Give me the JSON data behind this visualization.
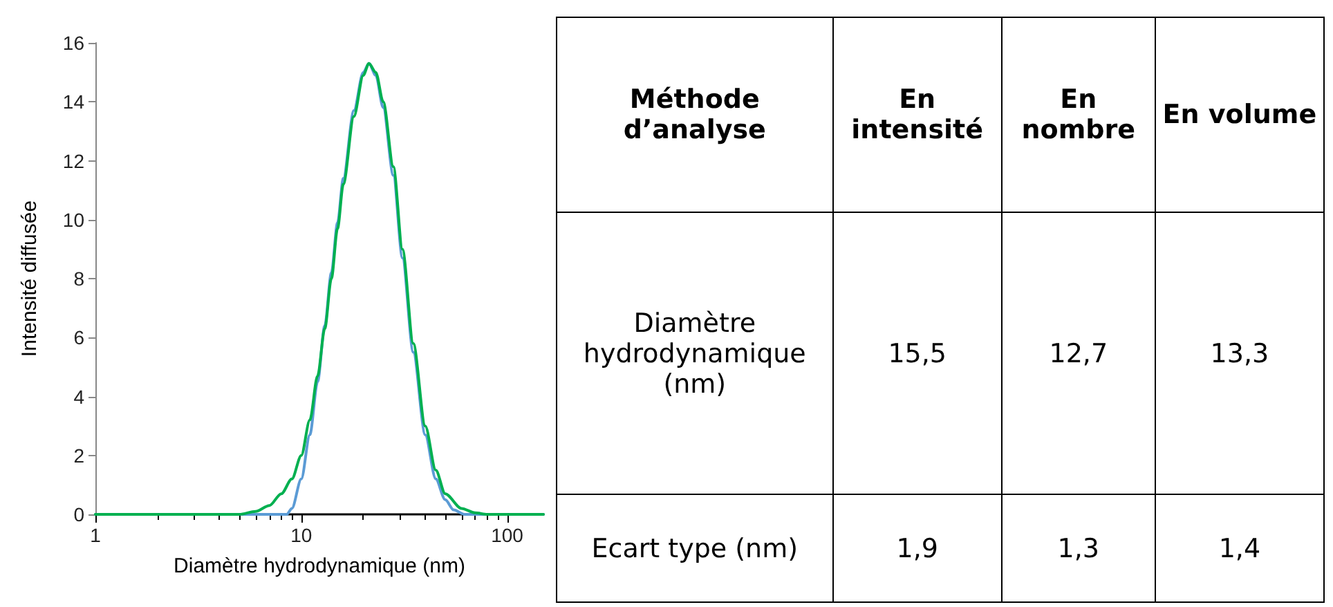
{
  "chart_data": [
    {
      "type": "line",
      "xlabel": "Diamètre hydrodynamique (nm)",
      "ylabel": "Intensité diffusée",
      "log": "x",
      "grid": false,
      "marker": "none",
      "line_style": "solid",
      "xlim": [
        1,
        150
      ],
      "xticks": [
        1,
        10,
        100
      ],
      "ylim": [
        0,
        16
      ],
      "yticks": [
        0,
        2,
        4,
        6,
        8,
        10,
        12,
        14,
        16
      ],
      "series": [
        {
          "color": "#5b9bd5",
          "x": [
            1,
            8.5,
            9,
            10,
            11,
            12,
            13,
            14,
            15,
            16,
            18,
            20,
            21.3,
            23,
            25,
            28,
            31,
            35,
            40,
            45,
            50,
            55,
            62,
            150
          ],
          "values": [
            0,
            0,
            0.2,
            1.2,
            2.7,
            4.5,
            6.4,
            8.2,
            9.9,
            11.4,
            13.7,
            15,
            15.3,
            14.9,
            13.8,
            11.5,
            8.7,
            5.5,
            2.7,
            1.2,
            0.5,
            0.15,
            0,
            0
          ]
        },
        {
          "color": "#00b050",
          "x": [
            1,
            3,
            5,
            6,
            7,
            8,
            9,
            10,
            11,
            12,
            13,
            14,
            15,
            16,
            18,
            20,
            21.3,
            23,
            25,
            28,
            31,
            35,
            40,
            45,
            50,
            60,
            70,
            80,
            150
          ],
          "values": [
            0,
            0,
            0,
            0.1,
            0.3,
            0.7,
            1.2,
            2,
            3.2,
            4.7,
            6.3,
            8,
            9.7,
            11.2,
            13.5,
            14.9,
            15.3,
            15,
            14,
            11.8,
            9,
            5.8,
            3,
            1.5,
            0.7,
            0.2,
            0.05,
            0,
            0
          ]
        }
      ]
    },
    {
      "type": "other",
      "title": "Méthode d’analyse",
      "categories": [
        "En intensité",
        "En nombre",
        "En volume"
      ],
      "y_categories": [
        "Diamètre hydrodynamique (nm)",
        "Ecart type (nm)"
      ],
      "cell_labels": [
        [
          "15,5",
          "12,7",
          "13,3"
        ],
        [
          "1,9",
          "1,3",
          "1,4"
        ]
      ]
    }
  ]
}
